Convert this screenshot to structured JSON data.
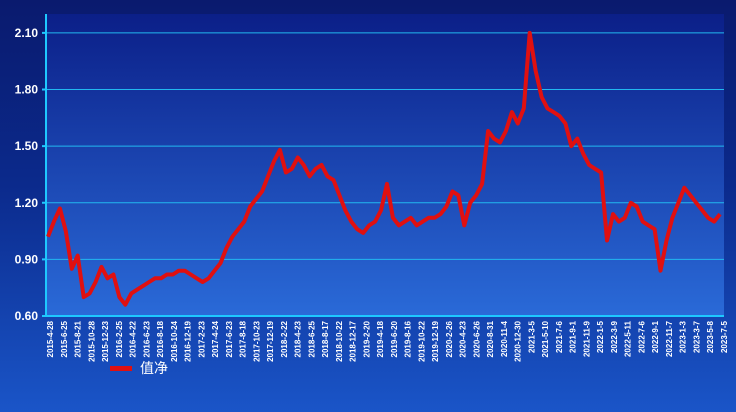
{
  "chart_data": {
    "type": "line",
    "ylim": [
      0.6,
      2.2
    ],
    "yticks": [
      "0.60",
      "0.90",
      "1.20",
      "1.50",
      "1.80",
      "2.10"
    ],
    "ytick_values": [
      0.6,
      0.9,
      1.2,
      1.5,
      1.8,
      2.1
    ],
    "xticks": [
      "2015-4-28",
      "2015-6-25",
      "2015-8-21",
      "2015-10-28",
      "2015-12-23",
      "2016-2-25",
      "2016-4-22",
      "2016-6-23",
      "2016-8-18",
      "2016-10-24",
      "2016-12-19",
      "2017-2-23",
      "2017-4-24",
      "2017-6-23",
      "2017-8-18",
      "2017-10-23",
      "2017-12-19",
      "2018-2-22",
      "2018-4-23",
      "2018-6-25",
      "2018-8-17",
      "2018-10-22",
      "2018-12-17",
      "2019-2-20",
      "2019-4-18",
      "2019-6-20",
      "2019-8-16",
      "2019-10-22",
      "2019-12-19",
      "2020-2-26",
      "2020-4-23",
      "2020-6-26",
      "2020-8-31",
      "2020-11-4",
      "2020-12-30",
      "2021-3-5",
      "2021-5-10",
      "2021-7-6",
      "2021-9-1",
      "2021-11-9",
      "2022-1-5",
      "2022-3-9",
      "2022-5-11",
      "2022-7-6",
      "2022-9-1",
      "2022-11-7",
      "2023-1-3",
      "2023-3-7",
      "2023-5-8",
      "2023-7-5"
    ],
    "grid": true,
    "legend_position": "bottom-left",
    "series": [
      {
        "name": "值净",
        "color": "#e01010",
        "values": [
          1.02,
          1.1,
          1.17,
          1.05,
          0.85,
          0.92,
          0.7,
          0.72,
          0.78,
          0.86,
          0.8,
          0.82,
          0.7,
          0.66,
          0.72,
          0.74,
          0.76,
          0.78,
          0.8,
          0.8,
          0.82,
          0.82,
          0.84,
          0.84,
          0.82,
          0.8,
          0.78,
          0.8,
          0.84,
          0.88,
          0.96,
          1.02,
          1.06,
          1.1,
          1.18,
          1.22,
          1.26,
          1.34,
          1.42,
          1.48,
          1.36,
          1.38,
          1.44,
          1.4,
          1.34,
          1.38,
          1.4,
          1.34,
          1.32,
          1.24,
          1.16,
          1.1,
          1.06,
          1.04,
          1.08,
          1.1,
          1.16,
          1.3,
          1.12,
          1.08,
          1.1,
          1.12,
          1.08,
          1.1,
          1.12,
          1.12,
          1.14,
          1.18,
          1.26,
          1.24,
          1.08,
          1.2,
          1.24,
          1.3,
          1.58,
          1.54,
          1.52,
          1.58,
          1.68,
          1.62,
          1.7,
          2.1,
          1.9,
          1.76,
          1.7,
          1.68,
          1.66,
          1.62,
          1.5,
          1.54,
          1.46,
          1.4,
          1.38,
          1.36,
          1.0,
          1.14,
          1.1,
          1.12,
          1.2,
          1.18,
          1.1,
          1.08,
          1.06,
          0.84,
          1.0,
          1.12,
          1.2,
          1.28,
          1.24,
          1.2,
          1.16,
          1.12,
          1.1,
          1.14
        ]
      }
    ]
  },
  "legend": {
    "label": "值净"
  }
}
